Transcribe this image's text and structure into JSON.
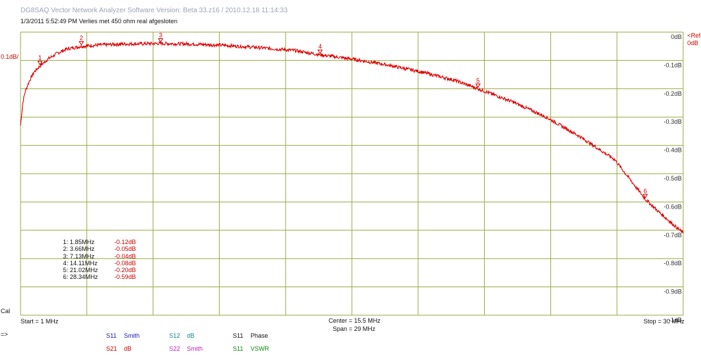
{
  "app": {
    "title": "DG8SAQ Vector Network Analyzer Software    Version:  Beta 33.z16 / 2010.12.18 11:14:33",
    "header_line": "1/3/2011    5:52:49 PM     Verlies met 450 ohm real afgesloten"
  },
  "labels": {
    "scale": "0.1dB/",
    "ref_arrow": "<Ref2",
    "ref_value": "0dB",
    "cal": "Cal",
    "start": "Start = 1 MHz",
    "center": "Center = 15.5 MHz",
    "span": "Span = 29 MHz",
    "stop": "Stop = 30 MHz",
    "arrow": "=>"
  },
  "trace_buttons": [
    {
      "port": "S11",
      "mode": "Smith",
      "port_color": "#1a1aaa",
      "mode_color": "#1a1aaa"
    },
    {
      "port": "S12",
      "mode": "dB",
      "port_color": "#118888",
      "mode_color": "#118888"
    },
    {
      "port": "S11",
      "mode": "Phase",
      "port_color": "#111111",
      "mode_color": "#111111"
    },
    {
      "port": "S21",
      "mode": "dB",
      "port_color": "#cc0000",
      "mode_color": "#cc0000"
    },
    {
      "port": "S22",
      "mode": "Smith",
      "port_color": "#bb22bb",
      "mode_color": "#bb22bb"
    },
    {
      "port": "S11",
      "mode": "VSWR",
      "port_color": "#118811",
      "mode_color": "#118811"
    }
  ],
  "markers": [
    {
      "label": "1",
      "text": "1:    1.85MHz",
      "value": "-0.12dB"
    },
    {
      "label": "2",
      "text": "2:    3.66MHz",
      "value": "-0.05dB"
    },
    {
      "label": "3",
      "text": "3:    7.13MHz",
      "value": "-0.04dB"
    },
    {
      "label": "4",
      "text": "4:  14.11MHz",
      "value": "-0.08dB"
    },
    {
      "label": "5",
      "text": "5:  21.02MHz",
      "value": "-0.20dB"
    },
    {
      "label": "6",
      "text": "6:  28.34MHz",
      "value": "-0.59dB"
    }
  ],
  "colors": {
    "grid": "#99aa44",
    "trace": "#dd0000",
    "text_red": "#cc0000"
  },
  "chart_data": {
    "type": "line",
    "title": "",
    "xlabel": "",
    "ylabel": "",
    "xlim": [
      1,
      30
    ],
    "ylim": [
      -1,
      0
    ],
    "x_unit": "MHz",
    "y_unit": "dB",
    "y_ticks": [
      "0dB",
      "-0.1dB",
      "-0.2dB",
      "-0.3dB",
      "-0.4dB",
      "-0.5dB",
      "-0.6dB",
      "-0.7dB",
      "-0.8dB",
      "-0.9dB",
      "-1dB"
    ],
    "grid": true,
    "series": [
      {
        "name": "S21",
        "x": [
          1.0,
          1.1,
          1.2,
          1.4,
          1.6,
          1.85,
          2.2,
          2.6,
          3.0,
          3.66,
          4.5,
          5.5,
          7.13,
          8.5,
          10.0,
          11.5,
          13.0,
          14.11,
          15.5,
          17.0,
          18.5,
          20.0,
          21.02,
          22.5,
          24.0,
          25.5,
          27.0,
          28.34,
          29.0,
          30.0
        ],
        "y": [
          -0.33,
          -0.25,
          -0.21,
          -0.17,
          -0.14,
          -0.12,
          -0.095,
          -0.075,
          -0.06,
          -0.05,
          -0.045,
          -0.042,
          -0.04,
          -0.042,
          -0.047,
          -0.055,
          -0.065,
          -0.08,
          -0.095,
          -0.115,
          -0.14,
          -0.17,
          -0.2,
          -0.245,
          -0.3,
          -0.37,
          -0.45,
          -0.59,
          -0.64,
          -0.71
        ]
      }
    ],
    "markers": [
      {
        "id": "1",
        "x": 1.85,
        "y": -0.12
      },
      {
        "id": "2",
        "x": 3.66,
        "y": -0.05
      },
      {
        "id": "3",
        "x": 7.13,
        "y": -0.04
      },
      {
        "id": "4",
        "x": 14.11,
        "y": -0.08
      },
      {
        "id": "5",
        "x": 21.02,
        "y": -0.2
      },
      {
        "id": "6",
        "x": 28.34,
        "y": -0.59
      }
    ]
  }
}
